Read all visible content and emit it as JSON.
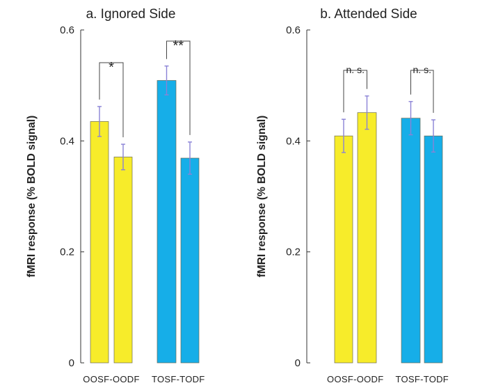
{
  "chart_data": [
    {
      "type": "bar",
      "title": "a. Ignored Side",
      "ylabel": "fMRI response (% BOLD signal)",
      "xlabel": "",
      "ylim": [
        0,
        0.6
      ],
      "yticks": [
        "0",
        "0.2",
        "0.4",
        "0.6"
      ],
      "grid": false,
      "categories": [
        "OOSF-OODF",
        "TOSF-TODF"
      ],
      "groups": [
        {
          "label": "OOSF-OODF",
          "bars": [
            {
              "value": 0.435,
              "err": 0.027,
              "color": "#f7ec2a"
            },
            {
              "value": 0.371,
              "err": 0.023,
              "color": "#f7ec2a"
            }
          ],
          "significance": "*"
        },
        {
          "label": "TOSF-TODF",
          "bars": [
            {
              "value": 0.509,
              "err": 0.026,
              "color": "#16aee8"
            },
            {
              "value": 0.369,
              "err": 0.029,
              "color": "#16aee8"
            }
          ],
          "significance": "**"
        }
      ]
    },
    {
      "type": "bar",
      "title": "b. Attended Side",
      "ylabel": "fMRI response (% BOLD signal)",
      "xlabel": "",
      "ylim": [
        0,
        0.6
      ],
      "yticks": [
        "0",
        "0.2",
        "0.4",
        "0.6"
      ],
      "grid": false,
      "categories": [
        "OOSF-OODF",
        "TOSF-TODF"
      ],
      "groups": [
        {
          "label": "OOSF-OODF",
          "bars": [
            {
              "value": 0.409,
              "err": 0.03,
              "color": "#f7ec2a"
            },
            {
              "value": 0.451,
              "err": 0.03,
              "color": "#f7ec2a"
            }
          ],
          "significance": "n. s."
        },
        {
          "label": "TOSF-TODF",
          "bars": [
            {
              "value": 0.441,
              "err": 0.03,
              "color": "#16aee8"
            },
            {
              "value": 0.409,
              "err": 0.029,
              "color": "#16aee8"
            }
          ],
          "significance": "n. s."
        }
      ]
    }
  ]
}
